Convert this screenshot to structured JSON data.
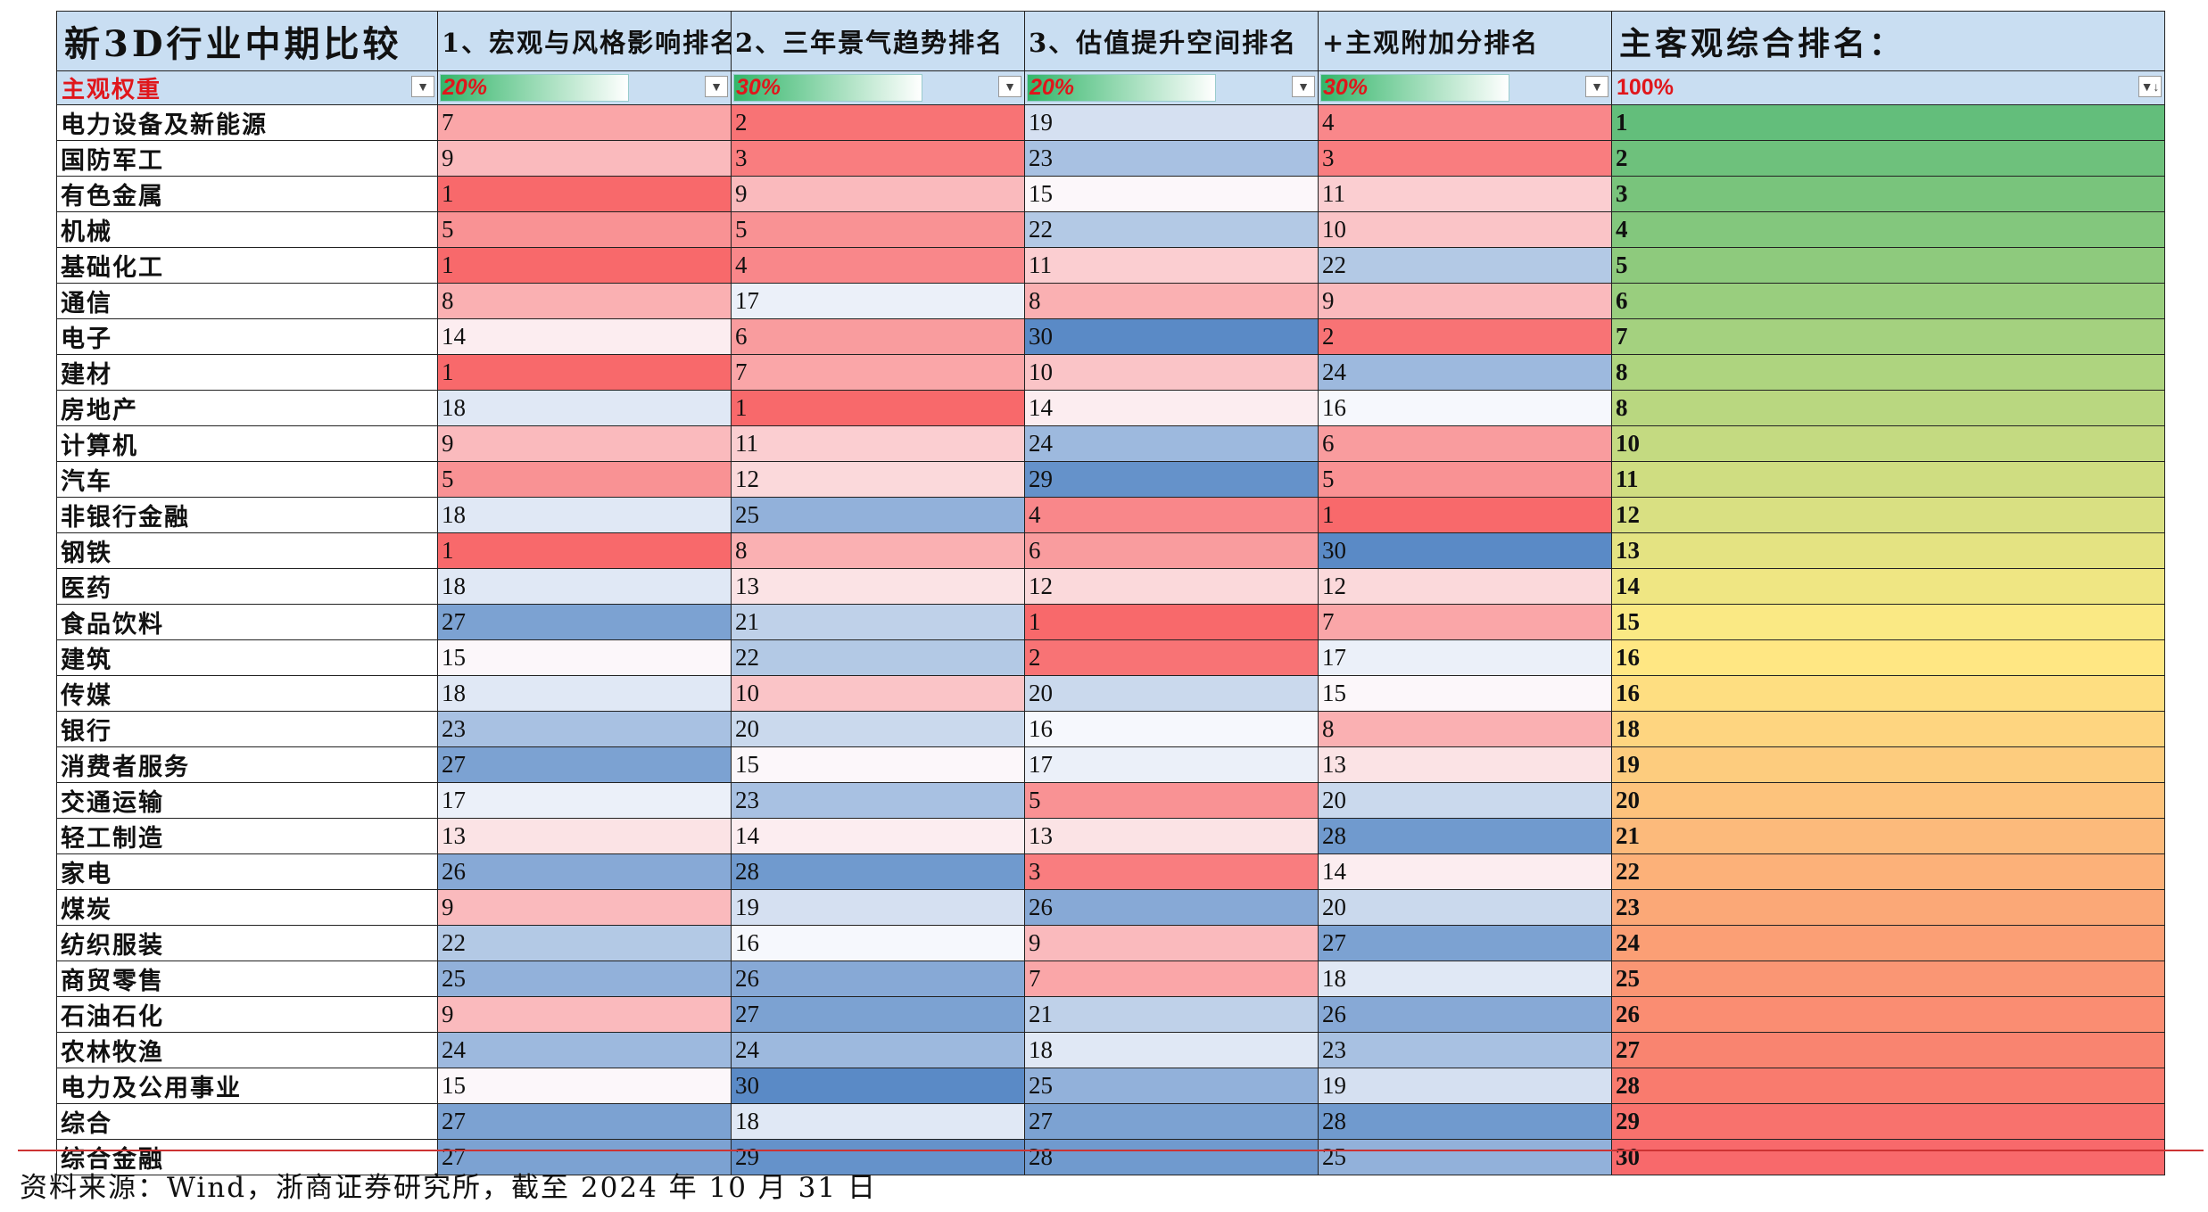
{
  "table": {
    "title": "新3D行业中期比较",
    "columns": [
      "1、宏观与风格影响排名",
      "2、三年景气趋势排名",
      "3、估值提升空间排名",
      "+主观附加分排名"
    ],
    "final_header": "主客观综合排名：",
    "weight_label": "主观权重",
    "weights": [
      "20%",
      "30%",
      "20%",
      "30%"
    ],
    "final_weight": "100%",
    "final_scale_colors": [
      "#63be7b",
      "#ffeb84",
      "#f8696b"
    ],
    "rank_scale_colors": {
      "low": "#f8696b",
      "mid": "#fcfcff",
      "high": "#5a8ac6"
    },
    "rows": [
      {
        "industry": "电力设备及新能源",
        "r": [
          7,
          2,
          19,
          4
        ],
        "final": "1"
      },
      {
        "industry": "国防军工",
        "r": [
          9,
          3,
          23,
          3
        ],
        "final": "2"
      },
      {
        "industry": "有色金属",
        "r": [
          1,
          9,
          15,
          11
        ],
        "final": "3"
      },
      {
        "industry": "机械",
        "r": [
          5,
          5,
          22,
          10
        ],
        "final": "4"
      },
      {
        "industry": "基础化工",
        "r": [
          1,
          4,
          11,
          22
        ],
        "final": "5"
      },
      {
        "industry": "通信",
        "r": [
          8,
          17,
          8,
          9
        ],
        "final": "6"
      },
      {
        "industry": "电子",
        "r": [
          14,
          6,
          30,
          2
        ],
        "final": "7"
      },
      {
        "industry": "建材",
        "r": [
          1,
          7,
          10,
          24
        ],
        "final": "8"
      },
      {
        "industry": "房地产",
        "r": [
          18,
          1,
          14,
          16
        ],
        "final": "8"
      },
      {
        "industry": "计算机",
        "r": [
          9,
          11,
          24,
          6
        ],
        "final": "10"
      },
      {
        "industry": "汽车",
        "r": [
          5,
          12,
          29,
          5
        ],
        "final": "11"
      },
      {
        "industry": "非银行金融",
        "r": [
          18,
          25,
          4,
          1
        ],
        "final": "12"
      },
      {
        "industry": "钢铁",
        "r": [
          1,
          8,
          6,
          30
        ],
        "final": "13"
      },
      {
        "industry": "医药",
        "r": [
          18,
          13,
          12,
          12
        ],
        "final": "14"
      },
      {
        "industry": "食品饮料",
        "r": [
          27,
          21,
          1,
          7
        ],
        "final": "15"
      },
      {
        "industry": "建筑",
        "r": [
          15,
          22,
          2,
          17
        ],
        "final": "16"
      },
      {
        "industry": "传媒",
        "r": [
          18,
          10,
          20,
          15
        ],
        "final": "16"
      },
      {
        "industry": "银行",
        "r": [
          23,
          20,
          16,
          8
        ],
        "final": "18"
      },
      {
        "industry": "消费者服务",
        "r": [
          27,
          15,
          17,
          13
        ],
        "final": "19"
      },
      {
        "industry": "交通运输",
        "r": [
          17,
          23,
          5,
          20
        ],
        "final": "20"
      },
      {
        "industry": "轻工制造",
        "r": [
          13,
          14,
          13,
          28
        ],
        "final": "21"
      },
      {
        "industry": "家电",
        "r": [
          26,
          28,
          3,
          14
        ],
        "final": "22"
      },
      {
        "industry": "煤炭",
        "r": [
          9,
          19,
          26,
          20
        ],
        "final": "23"
      },
      {
        "industry": "纺织服装",
        "r": [
          22,
          16,
          9,
          27
        ],
        "final": "24"
      },
      {
        "industry": "商贸零售",
        "r": [
          25,
          26,
          7,
          18
        ],
        "final": "25"
      },
      {
        "industry": "石油石化",
        "r": [
          9,
          27,
          21,
          26
        ],
        "final": "26"
      },
      {
        "industry": "农林牧渔",
        "r": [
          24,
          24,
          18,
          23
        ],
        "final": "27"
      },
      {
        "industry": "电力及公用事业",
        "r": [
          15,
          30,
          25,
          19
        ],
        "final": "28"
      },
      {
        "industry": "综合",
        "r": [
          27,
          18,
          27,
          28
        ],
        "final": "29"
      },
      {
        "industry": "综合金融",
        "r": [
          27,
          29,
          28,
          25
        ],
        "final": "30"
      }
    ]
  },
  "source": "资料来源：Wind，浙商证券研究所，截至 2024 年 10 月 31 日"
}
